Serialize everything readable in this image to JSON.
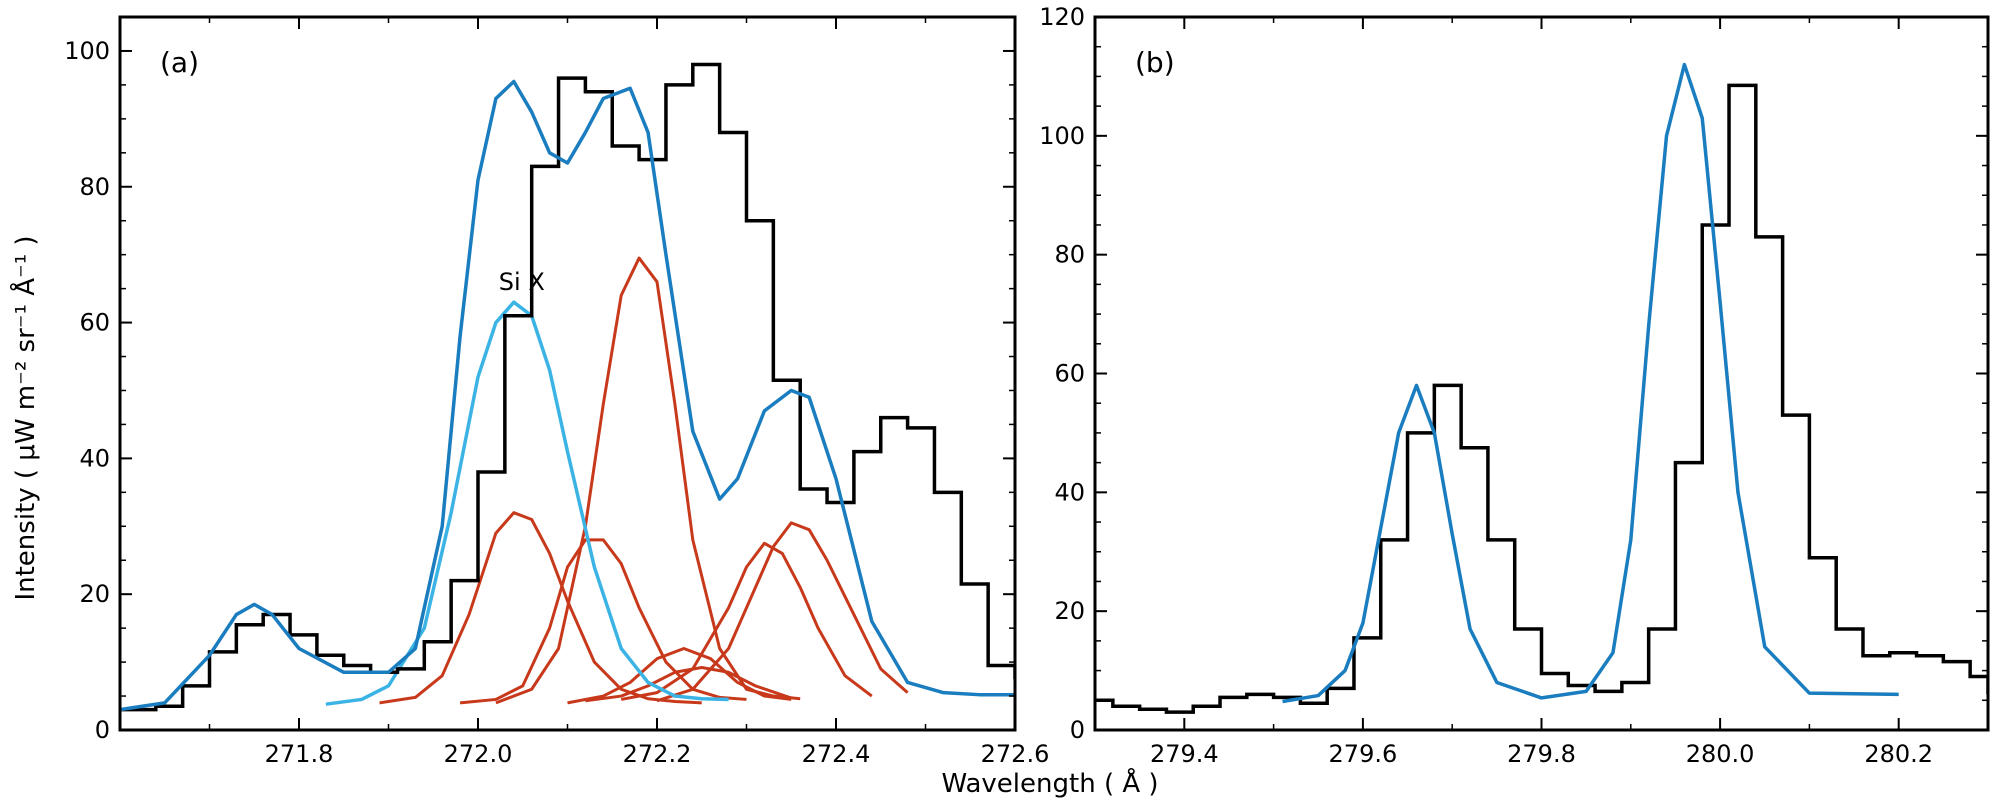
{
  "figure": {
    "xlabel": "Wavelength ( Å )",
    "ylabel": "Intensity ( μW m⁻² sr⁻¹ Å⁻¹ )"
  },
  "chart_data": [
    {
      "type": "line",
      "panel_label": "(a)",
      "xlim": [
        271.6,
        272.6
      ],
      "ylim": [
        0,
        105
      ],
      "xticks": [
        271.8,
        272.0,
        272.2,
        272.4,
        272.6
      ],
      "xtick_labels": [
        "271.8",
        "272.0",
        "272.2",
        "272.4",
        "272.6"
      ],
      "yticks": [
        0,
        20,
        40,
        60,
        80,
        100
      ],
      "ytick_labels": [
        "0",
        "20",
        "40",
        "60",
        "80",
        "100"
      ],
      "annotations": [
        {
          "text": "Si X",
          "x": 272.04,
          "y": 66
        }
      ],
      "colors": {
        "observed": "#000000",
        "total_fit": "#1a7dbf",
        "si_x": "#3bb4e5",
        "blend": "#c8391b"
      },
      "observed": {
        "x": [
          271.6,
          271.64,
          271.67,
          271.7,
          271.73,
          271.76,
          271.79,
          271.82,
          271.85,
          271.88,
          271.91,
          271.94,
          271.97,
          272.0,
          272.03,
          272.06,
          272.09,
          272.12,
          272.15,
          272.18,
          272.21,
          272.24,
          272.27,
          272.3,
          272.33,
          272.36,
          272.39,
          272.42,
          272.45,
          272.48,
          272.51,
          272.54,
          272.57,
          272.6
        ],
        "y": [
          3,
          3.5,
          6.5,
          11.5,
          15.5,
          17,
          14,
          11,
          9.5,
          8.5,
          9,
          13,
          22,
          38,
          61,
          83,
          96,
          94,
          86,
          84,
          95,
          98,
          88,
          75,
          51.5,
          35.5,
          33.5,
          41,
          46,
          44.5,
          35,
          21.5,
          9.5,
          7.5
        ]
      },
      "total_fit": {
        "x": [
          271.6,
          271.65,
          271.7,
          271.73,
          271.75,
          271.77,
          271.8,
          271.85,
          271.9,
          271.93,
          271.96,
          271.98,
          272.0,
          272.02,
          272.04,
          272.06,
          272.08,
          272.1,
          272.12,
          272.14,
          272.17,
          272.19,
          272.21,
          272.24,
          272.27,
          272.29,
          272.32,
          272.35,
          272.37,
          272.4,
          272.44,
          272.48,
          272.52,
          272.56,
          272.6
        ],
        "y": [
          3,
          4,
          11,
          17,
          18.5,
          17,
          12,
          8.5,
          8.5,
          12,
          30,
          58,
          81,
          93,
          95.5,
          91,
          85,
          83.5,
          88,
          93,
          94.5,
          88,
          70,
          44,
          34,
          37,
          47,
          50,
          49,
          37,
          16,
          7,
          5.5,
          5.2,
          5.2
        ]
      },
      "si_x": {
        "x": [
          271.83,
          271.87,
          271.9,
          271.94,
          271.97,
          272.0,
          272.02,
          272.04,
          272.06,
          272.08,
          272.1,
          272.13,
          272.16,
          272.19,
          272.22,
          272.25,
          272.28
        ],
        "y": [
          3.8,
          4.5,
          6.5,
          15,
          32,
          52,
          60,
          63,
          61,
          53,
          41,
          24,
          12,
          7,
          5,
          4.6,
          4.5
        ]
      },
      "blends": [
        {
          "x": [
            271.89,
            271.93,
            271.96,
            271.99,
            272.02,
            272.04,
            272.06,
            272.08,
            272.1,
            272.13,
            272.16,
            272.19,
            272.22,
            272.25
          ],
          "y": [
            4,
            4.8,
            8,
            17,
            29,
            32,
            31,
            26,
            19,
            10,
            6,
            4.6,
            4.2,
            4
          ]
        },
        {
          "x": [
            271.98,
            272.02,
            272.05,
            272.08,
            272.1,
            272.12,
            272.14,
            272.16,
            272.18,
            272.21,
            272.24,
            272.27,
            272.3
          ],
          "y": [
            4,
            4.5,
            6.5,
            15,
            24,
            28,
            28,
            24.5,
            18,
            10,
            6,
            4.8,
            4.5
          ]
        },
        {
          "x": [
            272.02,
            272.06,
            272.09,
            272.12,
            272.14,
            272.16,
            272.18,
            272.2,
            272.22,
            272.24,
            272.27,
            272.3,
            272.33,
            272.36
          ],
          "y": [
            4,
            6,
            12,
            30,
            48,
            64,
            69.5,
            66,
            48,
            28,
            12,
            6,
            5,
            4.6
          ]
        },
        {
          "x": [
            272.1,
            272.14,
            272.17,
            272.2,
            272.23,
            272.26,
            272.29,
            272.32,
            272.35
          ],
          "y": [
            4,
            5,
            7,
            10.5,
            12,
            10.5,
            7,
            5,
            4.5
          ]
        },
        {
          "x": [
            272.12,
            272.16,
            272.19,
            272.22,
            272.25,
            272.28,
            272.31,
            272.35
          ],
          "y": [
            4.3,
            5,
            6.5,
            8.5,
            9.2,
            8.5,
            6.5,
            4.7
          ]
        },
        {
          "x": [
            272.16,
            272.2,
            272.24,
            272.28,
            272.3,
            272.32,
            272.34,
            272.36,
            272.38,
            272.41,
            272.44
          ],
          "y": [
            4.5,
            5.5,
            9,
            18,
            24,
            27.5,
            26,
            21,
            15,
            8,
            5
          ]
        },
        {
          "x": [
            272.2,
            272.24,
            272.28,
            272.31,
            272.33,
            272.35,
            272.37,
            272.39,
            272.42,
            272.45,
            272.48
          ],
          "y": [
            4.3,
            6,
            12,
            21,
            27,
            30.5,
            29.5,
            25,
            17,
            9,
            5.5
          ]
        }
      ]
    },
    {
      "type": "line",
      "panel_label": "(b)",
      "xlim": [
        279.3,
        280.3
      ],
      "ylim": [
        0,
        120
      ],
      "xticks": [
        279.4,
        279.6,
        279.8,
        280.0,
        280.2
      ],
      "xtick_labels": [
        "279.4",
        "279.6",
        "279.8",
        "280.0",
        "280.2"
      ],
      "yticks": [
        0,
        20,
        40,
        60,
        80,
        100,
        120
      ],
      "ytick_labels": [
        "0",
        "20",
        "40",
        "60",
        "80",
        "100",
        "120"
      ],
      "colors": {
        "observed": "#000000",
        "fit": "#1a7dbf"
      },
      "observed": {
        "x": [
          279.3,
          279.32,
          279.35,
          279.38,
          279.41,
          279.44,
          279.47,
          279.5,
          279.53,
          279.56,
          279.59,
          279.62,
          279.65,
          279.68,
          279.71,
          279.74,
          279.77,
          279.8,
          279.83,
          279.86,
          279.89,
          279.92,
          279.95,
          279.98,
          280.01,
          280.04,
          280.07,
          280.1,
          280.13,
          280.16,
          280.19,
          280.22,
          280.25,
          280.28,
          280.3
        ],
        "y": [
          5,
          4,
          3.5,
          3,
          4,
          5.5,
          6,
          5.5,
          4.5,
          7,
          15.5,
          32,
          50,
          58,
          47.5,
          32,
          17,
          9.5,
          7.5,
          6.5,
          8,
          17,
          45,
          85,
          108.5,
          83,
          53,
          29,
          17,
          12.5,
          13,
          12.5,
          11.5,
          9,
          6
        ]
      },
      "fit": {
        "x": [
          279.51,
          279.55,
          279.58,
          279.6,
          279.62,
          279.64,
          279.66,
          279.68,
          279.7,
          279.72,
          279.75,
          279.8,
          279.85,
          279.88,
          279.9,
          279.92,
          279.94,
          279.96,
          279.98,
          280.0,
          280.02,
          280.05,
          280.1,
          280.2
        ],
        "y": [
          4.8,
          5.8,
          10,
          18,
          34,
          50,
          58,
          50,
          33,
          17,
          8,
          5.4,
          6.5,
          13,
          32,
          68,
          100,
          112,
          103,
          72,
          40,
          14,
          6.2,
          6
        ]
      }
    }
  ]
}
